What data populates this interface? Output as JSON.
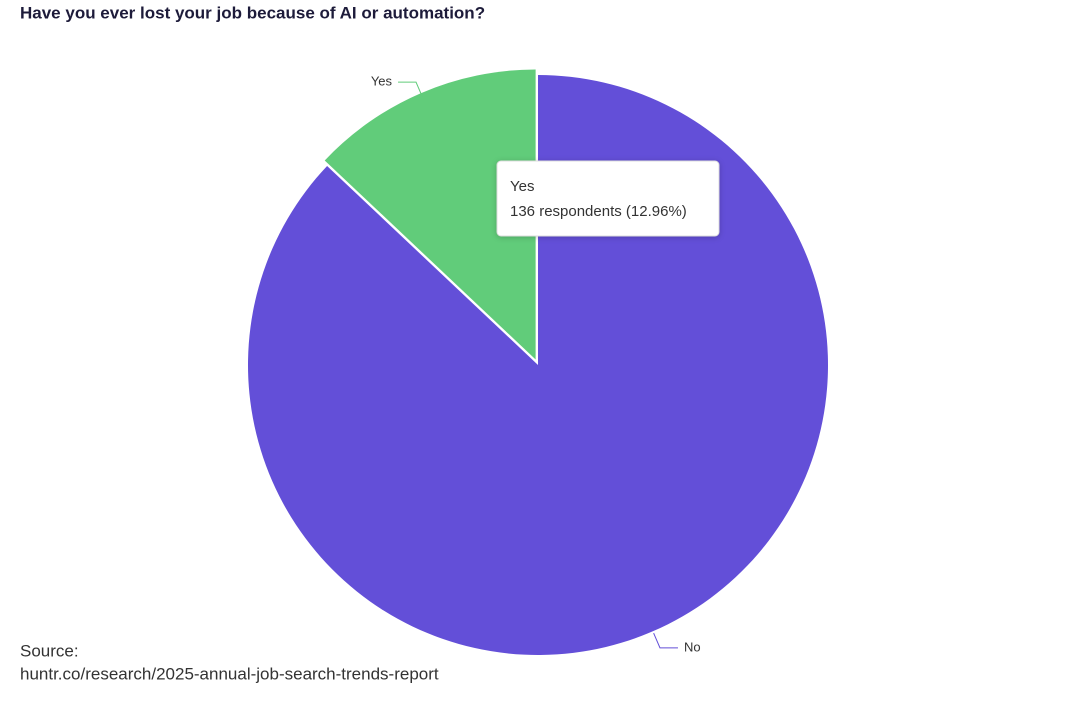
{
  "chart_data": {
    "type": "pie",
    "title": "Have you ever lost your job because of AI or automation?",
    "categories": [
      "Yes",
      "No"
    ],
    "values": [
      12.96,
      87.04
    ],
    "colors": [
      "#61cc7a",
      "#634fd8"
    ],
    "tooltip": {
      "label": "Yes",
      "text": "136 respondents (12.96%)"
    },
    "source_label": "Source:",
    "source": "huntr.co/research/2025-annual-job-search-trends-report"
  }
}
